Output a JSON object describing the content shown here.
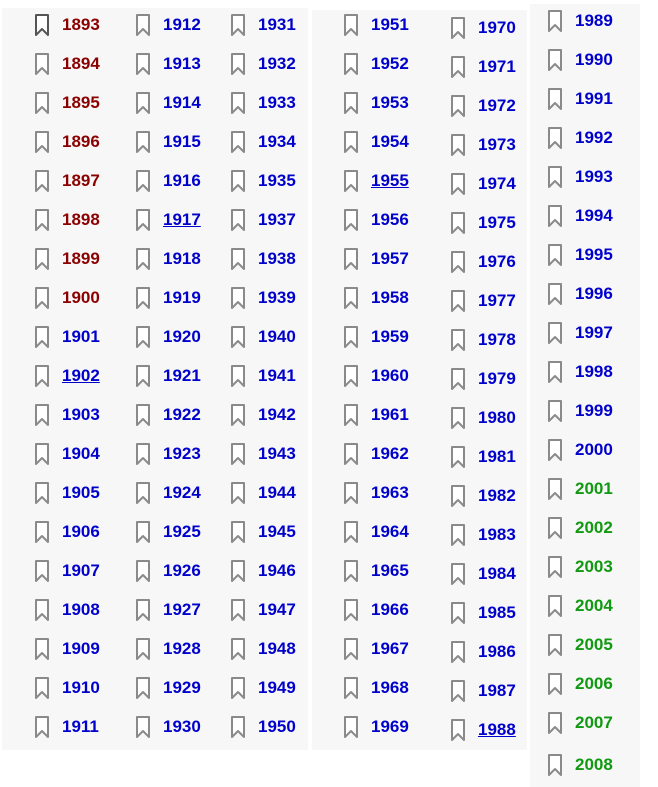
{
  "columns": [
    {
      "items": [
        {
          "label": "1893",
          "color": "#8b0000"
        },
        {
          "label": "1894",
          "color": "#8b0000"
        },
        {
          "label": "1895",
          "color": "#8b0000"
        },
        {
          "label": "1896",
          "color": "#8b0000"
        },
        {
          "label": "1897",
          "color": "#8b0000"
        },
        {
          "label": "1898",
          "color": "#8b0000"
        },
        {
          "label": "1899",
          "color": "#8b0000"
        },
        {
          "label": "1900",
          "color": "#8b0000"
        },
        {
          "label": "1901",
          "color": "#0000cc"
        },
        {
          "label": "1902",
          "color": "#0000cc",
          "underline": true
        },
        {
          "label": "1903",
          "color": "#0000cc"
        },
        {
          "label": "1904",
          "color": "#0000cc"
        },
        {
          "label": "1905",
          "color": "#0000cc"
        },
        {
          "label": "1906",
          "color": "#0000cc"
        },
        {
          "label": "1907",
          "color": "#0000cc"
        },
        {
          "label": "1908",
          "color": "#0000cc"
        },
        {
          "label": "1909",
          "color": "#0000cc"
        },
        {
          "label": "1910",
          "color": "#0000cc"
        },
        {
          "label": "1911",
          "color": "#0000cc"
        }
      ]
    },
    {
      "items": [
        {
          "label": "1912",
          "color": "#0000cc"
        },
        {
          "label": "1913",
          "color": "#0000cc"
        },
        {
          "label": "1914",
          "color": "#0000cc"
        },
        {
          "label": "1915",
          "color": "#0000cc"
        },
        {
          "label": "1916",
          "color": "#0000cc"
        },
        {
          "label": "1917",
          "color": "#0000cc",
          "underline": true
        },
        {
          "label": "1918",
          "color": "#0000cc"
        },
        {
          "label": "1919",
          "color": "#0000cc"
        },
        {
          "label": "1920",
          "color": "#0000cc"
        },
        {
          "label": "1921",
          "color": "#0000cc"
        },
        {
          "label": "1922",
          "color": "#0000cc"
        },
        {
          "label": "1923",
          "color": "#0000cc"
        },
        {
          "label": "1924",
          "color": "#0000cc"
        },
        {
          "label": "1925",
          "color": "#0000cc"
        },
        {
          "label": "1926",
          "color": "#0000cc"
        },
        {
          "label": "1927",
          "color": "#0000cc"
        },
        {
          "label": "1928",
          "color": "#0000cc"
        },
        {
          "label": "1929",
          "color": "#0000cc"
        },
        {
          "label": "1930",
          "color": "#0000cc"
        }
      ]
    },
    {
      "items": [
        {
          "label": "1931",
          "color": "#0000cc"
        },
        {
          "label": "1932",
          "color": "#0000cc"
        },
        {
          "label": "1933",
          "color": "#0000cc"
        },
        {
          "label": "1934",
          "color": "#0000cc"
        },
        {
          "label": "1935",
          "color": "#0000cc"
        },
        {
          "label": "1937",
          "color": "#0000cc"
        },
        {
          "label": "1938",
          "color": "#0000cc"
        },
        {
          "label": "1939",
          "color": "#0000cc"
        },
        {
          "label": "1940",
          "color": "#0000cc"
        },
        {
          "label": "1941",
          "color": "#0000cc"
        },
        {
          "label": "1942",
          "color": "#0000cc"
        },
        {
          "label": "1943",
          "color": "#0000cc"
        },
        {
          "label": "1944",
          "color": "#0000cc"
        },
        {
          "label": "1945",
          "color": "#0000cc"
        },
        {
          "label": "1946",
          "color": "#0000cc"
        },
        {
          "label": "1947",
          "color": "#0000cc"
        },
        {
          "label": "1948",
          "color": "#0000cc"
        },
        {
          "label": "1949",
          "color": "#0000cc"
        },
        {
          "label": "1950",
          "color": "#0000cc"
        }
      ]
    },
    {
      "items": [
        {
          "label": "1951",
          "color": "#0000cc"
        },
        {
          "label": "1952",
          "color": "#0000cc"
        },
        {
          "label": "1953",
          "color": "#0000cc"
        },
        {
          "label": "1954",
          "color": "#0000cc"
        },
        {
          "label": "1955",
          "color": "#0000cc",
          "underline": true
        },
        {
          "label": "1956",
          "color": "#0000cc"
        },
        {
          "label": "1957",
          "color": "#0000cc"
        },
        {
          "label": "1958",
          "color": "#0000cc"
        },
        {
          "label": "1959",
          "color": "#0000cc"
        },
        {
          "label": "1960",
          "color": "#0000cc"
        },
        {
          "label": "1961",
          "color": "#0000cc"
        },
        {
          "label": "1962",
          "color": "#0000cc"
        },
        {
          "label": "1963",
          "color": "#0000cc"
        },
        {
          "label": "1964",
          "color": "#0000cc"
        },
        {
          "label": "1965",
          "color": "#0000cc"
        },
        {
          "label": "1966",
          "color": "#0000cc"
        },
        {
          "label": "1967",
          "color": "#0000cc"
        },
        {
          "label": "1968",
          "color": "#0000cc"
        },
        {
          "label": "1969",
          "color": "#0000cc"
        }
      ]
    },
    {
      "items": [
        {
          "label": "1970",
          "color": "#0000cc"
        },
        {
          "label": "1971",
          "color": "#0000cc"
        },
        {
          "label": "1972",
          "color": "#0000cc"
        },
        {
          "label": "1973",
          "color": "#0000cc"
        },
        {
          "label": "1974",
          "color": "#0000cc"
        },
        {
          "label": "1975",
          "color": "#0000cc"
        },
        {
          "label": "1976",
          "color": "#0000cc"
        },
        {
          "label": "1977",
          "color": "#0000cc"
        },
        {
          "label": "1978",
          "color": "#0000cc"
        },
        {
          "label": "1979",
          "color": "#0000cc"
        },
        {
          "label": "1980",
          "color": "#0000cc"
        },
        {
          "label": "1981",
          "color": "#0000cc"
        },
        {
          "label": "1982",
          "color": "#0000cc"
        },
        {
          "label": "1983",
          "color": "#0000cc"
        },
        {
          "label": "1984",
          "color": "#0000cc"
        },
        {
          "label": "1985",
          "color": "#0000cc"
        },
        {
          "label": "1986",
          "color": "#0000cc"
        },
        {
          "label": "1987",
          "color": "#0000cc"
        },
        {
          "label": "1988",
          "color": "#0000cc",
          "underline": true
        }
      ]
    },
    {
      "items": [
        {
          "label": "1989",
          "color": "#0000cc"
        },
        {
          "label": "1990",
          "color": "#0000cc"
        },
        {
          "label": "1991",
          "color": "#0000cc"
        },
        {
          "label": "1992",
          "color": "#0000cc"
        },
        {
          "label": "1993",
          "color": "#0000cc"
        },
        {
          "label": "1994",
          "color": "#0000cc"
        },
        {
          "label": "1995",
          "color": "#0000cc"
        },
        {
          "label": "1996",
          "color": "#0000cc"
        },
        {
          "label": "1997",
          "color": "#0000cc"
        },
        {
          "label": "1998",
          "color": "#0000cc"
        },
        {
          "label": "1999",
          "color": "#0000cc"
        },
        {
          "label": "2000",
          "color": "#0000cc"
        },
        {
          "label": "2001",
          "color": "#119911"
        },
        {
          "label": "2002",
          "color": "#119911"
        },
        {
          "label": "2003",
          "color": "#119911"
        },
        {
          "label": "2004",
          "color": "#119911"
        },
        {
          "label": "2005",
          "color": "#119911"
        },
        {
          "label": "2006",
          "color": "#119911"
        },
        {
          "label": "2007",
          "color": "#119911"
        },
        {
          "label": "2008",
          "color": "#119911"
        }
      ]
    }
  ]
}
